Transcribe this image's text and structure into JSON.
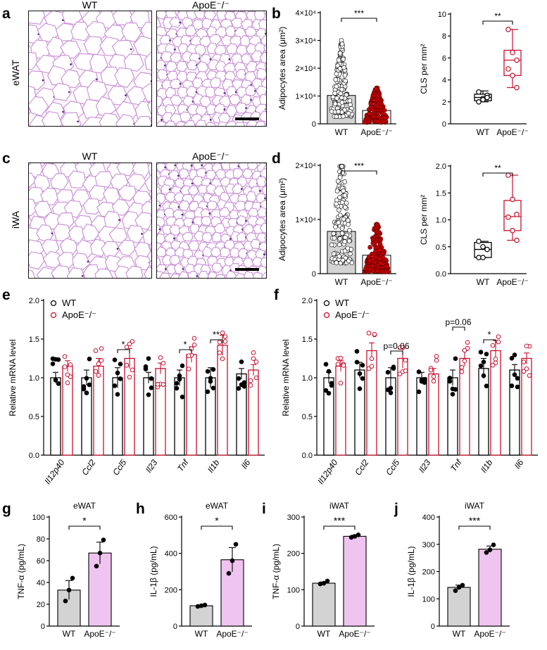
{
  "panels": {
    "a": "a",
    "b": "b",
    "c": "c",
    "d": "d",
    "e": "e",
    "f": "f",
    "g": "g",
    "h": "h",
    "i": "i",
    "j": "j"
  },
  "micrographs": {
    "a": {
      "tissue": "eWAT",
      "left": "WT",
      "right": "ApoE⁻/⁻"
    },
    "c": {
      "tissue": "iWA",
      "left": "WT",
      "right": "ApoE⁻/⁻"
    }
  },
  "colors": {
    "wt_fill": "#d3d3d3",
    "apoe_dot": "#c00000",
    "apoe_box": "#c8102e",
    "elisa_apoe": "#f0c4f0",
    "cell_wall": "#c98fd6",
    "nucleus": "#5b2a86"
  },
  "chart_data": [
    {
      "id": "b-area",
      "type": "bar",
      "title": "",
      "ylabel": "Adipocytes area (μm²)",
      "categories": [
        "WT",
        "ApoE⁻/⁻"
      ],
      "values": [
        10200,
        4800
      ],
      "ylim": [
        0,
        40000
      ],
      "yticks": [
        "0",
        "1×10⁴",
        "2×10⁴",
        "3×10⁴",
        "4×10⁴"
      ],
      "significance": "***"
    },
    {
      "id": "b-cls",
      "type": "box",
      "ylabel": "CLS per mm²",
      "categories": [
        "WT",
        "ApoE⁻/⁻"
      ],
      "series": [
        {
          "name": "WT",
          "points": [
            2.0,
            2.3,
            2.6,
            2.9,
            2.2,
            2.4
          ],
          "box": [
            2.0,
            2.1,
            2.4,
            2.7,
            3.0
          ]
        },
        {
          "name": "ApoE⁻/⁻",
          "points": [
            8.6,
            6.5,
            5.8,
            5.0,
            4.4,
            3.3
          ],
          "box": [
            3.3,
            4.4,
            5.8,
            6.7,
            8.6
          ]
        }
      ],
      "ylim": [
        0,
        10
      ],
      "yticks": [
        "0",
        "2",
        "4",
        "6",
        "8",
        "10"
      ],
      "significance": "**"
    },
    {
      "id": "d-area",
      "type": "bar",
      "ylabel": "Adipocytes area (μm²)",
      "categories": [
        "WT",
        "ApoE⁻/⁻"
      ],
      "values": [
        7800,
        3400
      ],
      "ylim": [
        0,
        20000
      ],
      "yticks": [
        "0",
        "1×10⁴",
        "2×10⁴"
      ],
      "significance": "***"
    },
    {
      "id": "d-cls",
      "type": "box",
      "ylabel": "CLS per mm²",
      "categories": [
        "WT",
        "ApoE⁻/⁻"
      ],
      "series": [
        {
          "name": "WT",
          "points": [
            0.3,
            0.3,
            0.45,
            0.6,
            0.5
          ],
          "box": [
            0.3,
            0.3,
            0.45,
            0.58,
            0.6
          ]
        },
        {
          "name": "ApoE⁻/⁻",
          "points": [
            1.83,
            1.38,
            1.1,
            1.05,
            0.8,
            0.62
          ],
          "box": [
            0.62,
            0.8,
            1.06,
            1.36,
            1.83
          ]
        }
      ],
      "ylim": [
        0,
        2.0
      ],
      "yticks": [
        "0.0",
        "0.5",
        "1.0",
        "1.5",
        "2.0"
      ],
      "significance": "**"
    },
    {
      "id": "e",
      "type": "bar",
      "ylabel": "Relative mRNA level",
      "categories": [
        "Il12p40",
        "Ccl2",
        "Ccl5",
        "Il23",
        "Tnf",
        "Il1b",
        "Il6"
      ],
      "series": [
        {
          "name": "WT",
          "values": [
            1.0,
            1.0,
            1.0,
            1.0,
            1.0,
            1.0,
            1.05
          ]
        },
        {
          "name": "ApoE⁻/⁻",
          "values": [
            1.15,
            1.15,
            1.25,
            1.12,
            1.3,
            1.42,
            1.1
          ]
        }
      ],
      "ylim": [
        0,
        2.0
      ],
      "yticks": [
        "0.0",
        "0.5",
        "1.0",
        "1.5",
        "2.0"
      ],
      "significance": [
        {
          "gene": "Ccl5",
          "label": "*"
        },
        {
          "gene": "Tnf",
          "label": "*"
        },
        {
          "gene": "Il1b",
          "label": "**"
        }
      ]
    },
    {
      "id": "f",
      "type": "bar",
      "ylabel": "Relative mRNA level",
      "categories": [
        "Il12p40",
        "Ccl2",
        "Ccl5",
        "Il23",
        "Tnf",
        "Il1b",
        "Il6"
      ],
      "series": [
        {
          "name": "WT",
          "values": [
            1.0,
            1.1,
            1.0,
            1.0,
            1.0,
            1.12,
            1.1
          ]
        },
        {
          "name": "ApoE⁻/⁻",
          "values": [
            1.15,
            1.35,
            1.25,
            1.05,
            1.25,
            1.35,
            1.25
          ]
        }
      ],
      "ylim": [
        0,
        2.0
      ],
      "yticks": [
        "0.0",
        "0.5",
        "1.0",
        "1.5",
        "2.0"
      ],
      "significance": [
        {
          "gene": "Ccl5",
          "label": "p=0.06"
        },
        {
          "gene": "Tnf",
          "label": "p=0.06"
        },
        {
          "gene": "Il1b",
          "label": "*"
        }
      ]
    },
    {
      "id": "g",
      "type": "bar",
      "title": "eWAT",
      "ylabel": "TNF-α (pg/mL)",
      "categories": [
        "WT",
        "ApoE⁻/⁻"
      ],
      "values": [
        33,
        67
      ],
      "points": [
        [
          23,
          33,
          44
        ],
        [
          55,
          67,
          79
        ]
      ],
      "ylim": [
        0,
        100
      ],
      "yticks": [
        "0",
        "20",
        "40",
        "60",
        "80",
        "100"
      ],
      "significance": "*"
    },
    {
      "id": "h",
      "type": "bar",
      "title": "eWAT",
      "ylabel": "IL-1β (pg/mL)",
      "categories": [
        "WT",
        "ApoE⁻/⁻"
      ],
      "values": [
        112,
        365
      ],
      "points": [
        [
          108,
          112,
          116
        ],
        [
          290,
          360,
          450
        ]
      ],
      "ylim": [
        0,
        600
      ],
      "yticks": [
        "0",
        "200",
        "400",
        "600"
      ],
      "significance": "*"
    },
    {
      "id": "i",
      "type": "bar",
      "title": "iWAT",
      "ylabel": "TNF-α (pg/mL)",
      "categories": [
        "WT",
        "ApoE⁻/⁻"
      ],
      "values": [
        118,
        247
      ],
      "points": [
        [
          116,
          118,
          124
        ],
        [
          244,
          247,
          251
        ]
      ],
      "ylim": [
        0,
        300
      ],
      "yticks": [
        "0",
        "100",
        "200",
        "300"
      ],
      "significance": "***"
    },
    {
      "id": "j",
      "type": "bar",
      "title": "iWAT",
      "ylabel": "IL-1β (pg/mL)",
      "categories": [
        "WT",
        "ApoE⁻/⁻"
      ],
      "values": [
        142,
        282
      ],
      "points": [
        [
          130,
          142,
          150
        ],
        [
          270,
          280,
          298
        ]
      ],
      "ylim": [
        0,
        400
      ],
      "yticks": [
        "0",
        "100",
        "200",
        "300",
        "400"
      ],
      "significance": "***"
    }
  ],
  "legend": {
    "wt": "WT",
    "apoe": "ApoE⁻/⁻"
  }
}
